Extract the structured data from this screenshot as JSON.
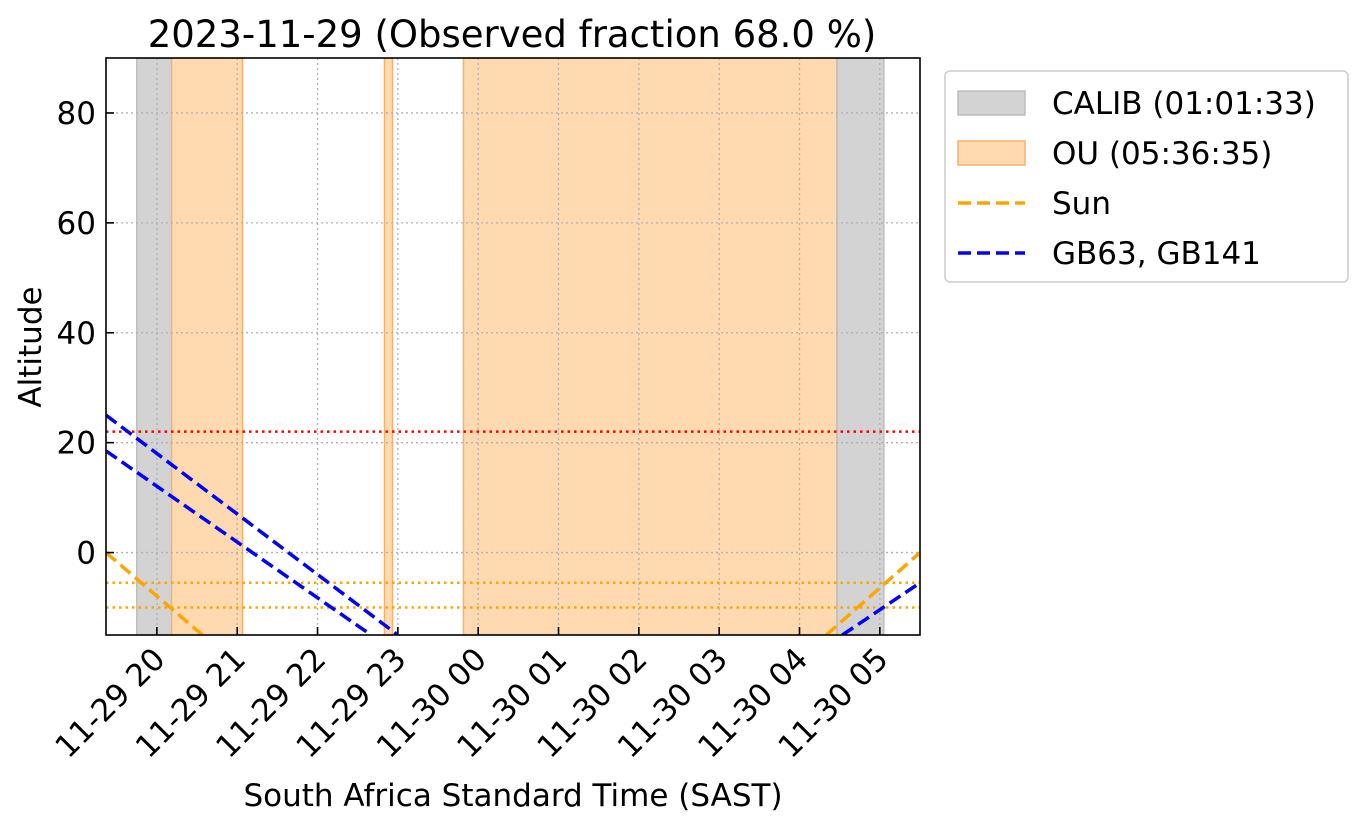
{
  "chart_data": {
    "type": "area",
    "title": "2023-11-29 (Observed fraction 68.0 %)",
    "xlabel": "South Africa Standard Time (SAST)",
    "ylabel": "Altitude",
    "x_unit": "hours",
    "xlim": [
      "2023-11-29 19:22",
      "2023-11-30 05:30"
    ],
    "ylim": [
      -15,
      90
    ],
    "yticks": [
      0,
      20,
      40,
      60,
      80
    ],
    "xticks": [
      {
        "value": "2023-11-29 20:00",
        "label": "11-29 20"
      },
      {
        "value": "2023-11-29 21:00",
        "label": "11-29 21"
      },
      {
        "value": "2023-11-29 22:00",
        "label": "11-29 22"
      },
      {
        "value": "2023-11-29 23:00",
        "label": "11-29 23"
      },
      {
        "value": "2023-11-30 00:00",
        "label": "11-30 00"
      },
      {
        "value": "2023-11-30 01:00",
        "label": "11-30 01"
      },
      {
        "value": "2023-11-30 02:00",
        "label": "11-30 02"
      },
      {
        "value": "2023-11-30 03:00",
        "label": "11-30 03"
      },
      {
        "value": "2023-11-30 04:00",
        "label": "11-30 04"
      },
      {
        "value": "2023-11-30 05:00",
        "label": "11-30 05"
      }
    ],
    "grid": true,
    "legend_position": "outside-right",
    "spans": [
      {
        "series": "CALIB",
        "start": "2023-11-29 19:45",
        "end": "2023-11-29 20:11"
      },
      {
        "series": "OU",
        "start": "2023-11-29 20:11",
        "end": "2023-11-29 21:04"
      },
      {
        "series": "OU",
        "start": "2023-11-29 22:50",
        "end": "2023-11-29 22:56"
      },
      {
        "series": "OU",
        "start": "2023-11-29 23:49",
        "end": "2023-11-30 04:28"
      },
      {
        "series": "CALIB",
        "start": "2023-11-30 04:28",
        "end": "2023-11-30 05:03"
      }
    ],
    "legend": [
      {
        "name": "CALIB (01:01:33)",
        "kind": "patch",
        "color": "#d3d3d3"
      },
      {
        "name": "OU (05:36:35)",
        "kind": "patch",
        "color": "#ffdab0"
      },
      {
        "name": "Sun",
        "kind": "dashed-line",
        "color": "#ffa500"
      },
      {
        "name": "GB63, GB141",
        "kind": "dashed-line",
        "color": "#0000ff"
      }
    ],
    "lines": [
      {
        "group": "Sun",
        "color": "#ffa500",
        "style": "dashed",
        "points": [
          {
            "x": "2023-11-29 19:22",
            "y": 0
          },
          {
            "x": "2023-11-29 20:34",
            "y": -15
          }
        ]
      },
      {
        "group": "Sun",
        "color": "#ffa500",
        "style": "dashed",
        "points": [
          {
            "x": "2023-11-30 04:20",
            "y": -15
          },
          {
            "x": "2023-11-30 05:30",
            "y": 0
          }
        ]
      },
      {
        "group": "GB63, GB141",
        "color": "#0000ff",
        "style": "dashed",
        "points": [
          {
            "x": "2023-11-29 19:22",
            "y": 25
          },
          {
            "x": "2023-11-29 23:00",
            "y": -15
          }
        ]
      },
      {
        "group": "GB63, GB141",
        "color": "#0000ff",
        "style": "dashed",
        "points": [
          {
            "x": "2023-11-29 19:22",
            "y": 18.5
          },
          {
            "x": "2023-11-29 22:40",
            "y": -15
          }
        ]
      },
      {
        "group": "GB63, GB141",
        "color": "#0000ff",
        "style": "dashed",
        "points": [
          {
            "x": "2023-11-30 04:32",
            "y": -15
          },
          {
            "x": "2023-11-30 05:30",
            "y": -5.5
          }
        ]
      }
    ],
    "hlines": [
      {
        "y": 22,
        "color": "#ff0000",
        "style": "dotted"
      },
      {
        "y": -5.5,
        "color": "#ffa500",
        "style": "dotted"
      },
      {
        "y": -10,
        "color": "#ffa500",
        "style": "dotted"
      }
    ],
    "colors": {
      "calib_fill": "#d3d3d3",
      "calib_edge": "#bdbdbd",
      "ou_fill": "#ffdab0",
      "ou_edge": "#f5b26b",
      "sun": "#ffa500",
      "target": "#0000ff",
      "limit": "#ff0000",
      "grid": "#b0b0b0"
    }
  }
}
